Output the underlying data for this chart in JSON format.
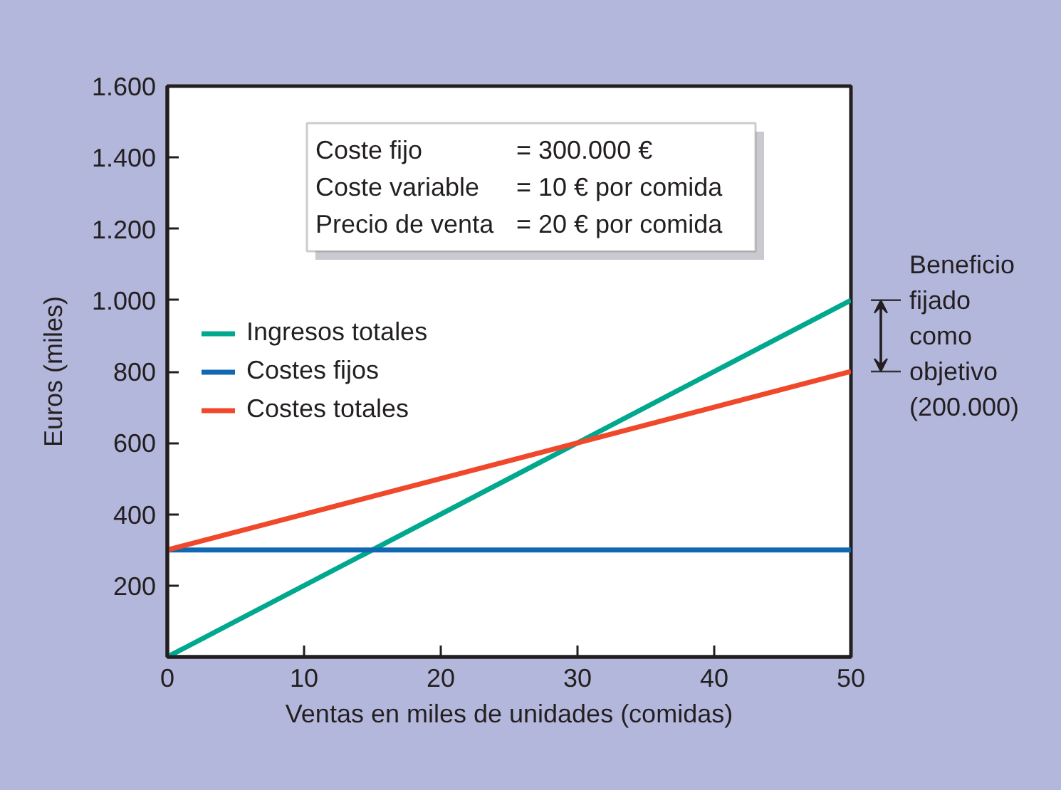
{
  "chart_data": {
    "type": "line",
    "xlabel": "Ventas en miles de unidades (comidas)",
    "ylabel": "Euros (miles)",
    "x": [
      0,
      50
    ],
    "series": [
      {
        "name": "Ingresos totales",
        "color": "#00a88e",
        "values": [
          0,
          1000
        ]
      },
      {
        "name": "Costes fijos",
        "color": "#1068b3",
        "values": [
          300,
          300
        ]
      },
      {
        "name": "Costes totales",
        "color": "#f0482a",
        "values": [
          300,
          800
        ]
      }
    ],
    "xlim": [
      0,
      50
    ],
    "ylim": [
      0,
      1600
    ],
    "xticks": [
      0,
      10,
      20,
      30,
      40,
      50
    ],
    "yticks": [
      200,
      400,
      600,
      800,
      {
        "value": 1000,
        "label": "1.000"
      },
      {
        "value": 1200,
        "label": "1.200"
      },
      {
        "value": 1400,
        "label": "1.400"
      },
      {
        "value": 1600,
        "label": "1.600"
      }
    ],
    "grid": false,
    "legend": "left",
    "annotations": [
      "Coste fijo = 300.000 €",
      "Coste variable = 10 € por comida",
      "Precio de venta = 20 € por comida",
      "Beneficio fijado como objetivo (200.000)"
    ]
  }
}
